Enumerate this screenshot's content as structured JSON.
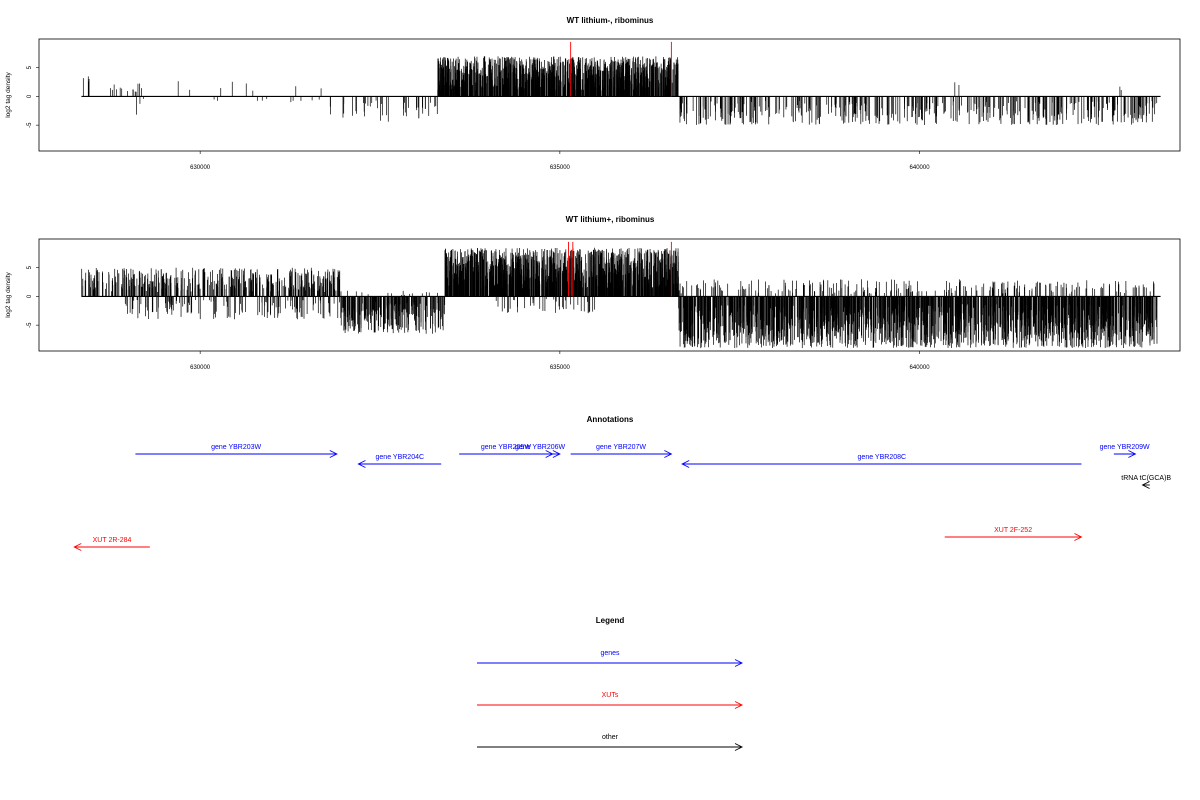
{
  "chart_data": [
    {
      "type": "bar",
      "title": "WT lithium-, ribominus",
      "ylabel": "log2 tag density",
      "xlabel": "",
      "xlim": [
        627760,
        643620
      ],
      "ylim": [
        -9.5,
        10
      ],
      "x_ticks": [
        630000,
        635000,
        640000
      ],
      "x_tick_labels": [
        "630000",
        "635000",
        "640000"
      ],
      "y_ticks": [
        -5,
        0,
        5
      ],
      "y_tick_labels": [
        "-5",
        "0",
        "5"
      ],
      "baseline_range": [
        628350,
        643350
      ],
      "bar_color": "#000000",
      "marker_color": "#ff0000",
      "markers": [
        {
          "x": 635150,
          "y": 9.5
        },
        {
          "x": 636550,
          "y": 9.5
        }
      ],
      "segments": [
        {
          "start": 628350,
          "end": 628500,
          "min": 0,
          "max": 3.5,
          "density": 0.5
        },
        {
          "start": 628700,
          "end": 629200,
          "min": 0,
          "max": 2.5,
          "density": 0.4
        },
        {
          "start": 629050,
          "end": 629200,
          "min": -3.5,
          "max": 0,
          "density": 0.15
        },
        {
          "start": 629200,
          "end": 631800,
          "min": -1,
          "max": 4,
          "density": 0.1
        },
        {
          "start": 631800,
          "end": 633300,
          "min": -4.5,
          "max": 0,
          "density": 0.4
        },
        {
          "start": 633300,
          "end": 636650,
          "min": 0,
          "max": 7,
          "density": 4
        },
        {
          "start": 636650,
          "end": 643300,
          "min": -5,
          "max": 0,
          "density": 0.9
        },
        {
          "start": 640450,
          "end": 640550,
          "min": 0,
          "max": 2.5,
          "density": 0.3
        },
        {
          "start": 642750,
          "end": 642850,
          "min": 0,
          "max": 2,
          "density": 0.3
        }
      ]
    },
    {
      "type": "bar",
      "title": "WT lithium+, ribominus",
      "ylabel": "log2 tag density",
      "xlabel": "",
      "xlim": [
        627760,
        643620
      ],
      "ylim": [
        -9.5,
        10
      ],
      "x_ticks": [
        630000,
        635000,
        640000
      ],
      "x_tick_labels": [
        "630000",
        "635000",
        "640000"
      ],
      "y_ticks": [
        -5,
        0,
        5
      ],
      "y_tick_labels": [
        "-5",
        "0",
        "5"
      ],
      "baseline_range": [
        628350,
        643350
      ],
      "bar_color": "#000000",
      "marker_color": "#ff0000",
      "markers": [
        {
          "x": 635120,
          "y": 9.5
        },
        {
          "x": 635180,
          "y": 9.5
        },
        {
          "x": 636550,
          "y": 9.5
        }
      ],
      "segments": [
        {
          "start": 628350,
          "end": 631950,
          "min": 0,
          "max": 5,
          "density": 1.6
        },
        {
          "start": 628950,
          "end": 631950,
          "min": -4,
          "max": 0,
          "density": 0.6
        },
        {
          "start": 631950,
          "end": 633400,
          "min": -6.5,
          "max": 0,
          "density": 2.2
        },
        {
          "start": 631950,
          "end": 633400,
          "min": 0,
          "max": 1,
          "density": 0.15
        },
        {
          "start": 633400,
          "end": 636650,
          "min": 0,
          "max": 8.5,
          "density": 4.5
        },
        {
          "start": 634100,
          "end": 635500,
          "min": -3,
          "max": 0,
          "density": 0.4
        },
        {
          "start": 636650,
          "end": 643300,
          "min": -9,
          "max": 0,
          "density": 3.2
        },
        {
          "start": 636650,
          "end": 643300,
          "min": 0,
          "max": 3,
          "density": 0.5
        }
      ]
    }
  ],
  "annotations": {
    "title": "Annotations",
    "features": [
      {
        "label": "gene YBR203W",
        "start": 629100,
        "end": 631900,
        "direction": "right",
        "category": "gene",
        "row": 0
      },
      {
        "label": "gene YBR204C",
        "start": 632200,
        "end": 633350,
        "direction": "left",
        "category": "gene",
        "row": 1
      },
      {
        "label": "gene YBR205W",
        "start": 633600,
        "end": 634900,
        "direction": "right",
        "category": "gene",
        "row": 0
      },
      {
        "label": "gene YBR206W",
        "start": 634450,
        "end": 635000,
        "direction": "right",
        "category": "gene",
        "row": 0
      },
      {
        "label": "gene YBR207W",
        "start": 635150,
        "end": 636550,
        "direction": "right",
        "category": "gene",
        "row": 0
      },
      {
        "label": "gene YBR208C",
        "start": 636700,
        "end": 642250,
        "direction": "left",
        "category": "gene",
        "row": 1
      },
      {
        "label": "gene YBR209W",
        "start": 642700,
        "end": 643000,
        "direction": "right",
        "category": "gene",
        "row": 0
      },
      {
        "label": "tRNA tC(GCA)B",
        "start": 643100,
        "end": 643200,
        "direction": "left",
        "category": "other",
        "row": 2
      },
      {
        "label": "XUT 2F-252",
        "start": 640350,
        "end": 642250,
        "direction": "right",
        "category": "xut",
        "row": 3
      },
      {
        "label": "XUT 2R-284",
        "start": 628250,
        "end": 629300,
        "direction": "left",
        "category": "xut",
        "row": 4
      }
    ]
  },
  "legend": {
    "title": "Legend",
    "items": [
      {
        "label": "genes",
        "category": "gene"
      },
      {
        "label": "XUTs",
        "category": "xut"
      },
      {
        "label": "other",
        "category": "other"
      }
    ]
  },
  "colors": {
    "gene": "#0000ff",
    "xut": "#ff0000",
    "other": "#000000"
  }
}
